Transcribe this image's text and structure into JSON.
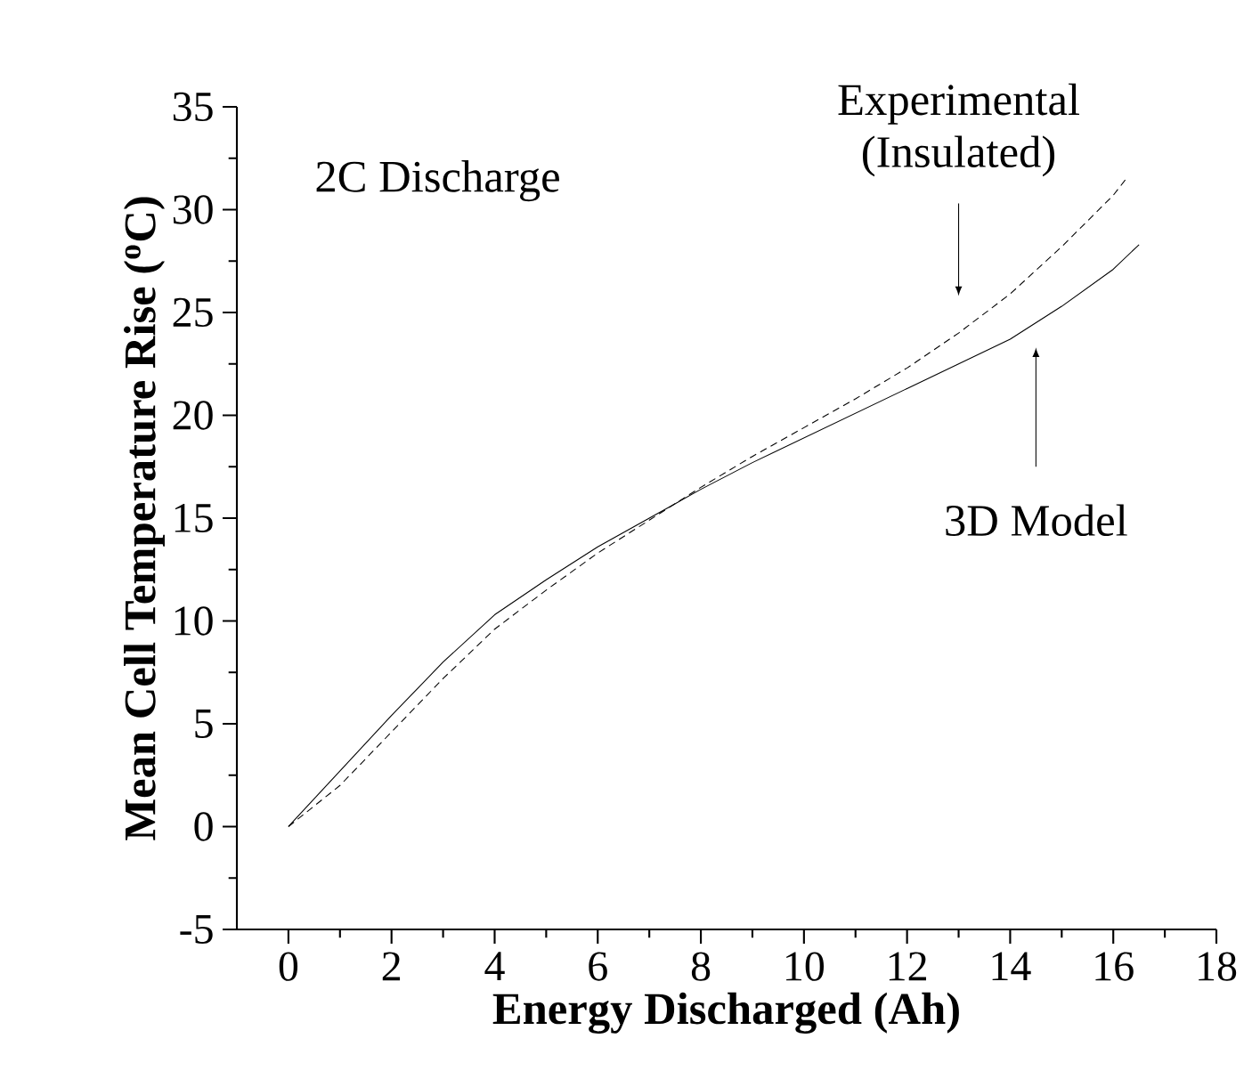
{
  "chart_data": {
    "type": "line",
    "xlabel": "Energy Discharged (Ah)",
    "ylabel": "Mean Cell Temperature Rise ($^{o}$C)",
    "annotations": [
      "2C Discharge"
    ],
    "xlim": [
      -1,
      18
    ],
    "ylim": [
      -5,
      35
    ],
    "xticks": [
      0,
      2,
      4,
      6,
      8,
      10,
      12,
      14,
      16,
      18
    ],
    "yticks": [
      -5,
      0,
      5,
      10,
      15,
      20,
      25,
      30,
      35
    ],
    "legend": false,
    "grid": false,
    "series": [
      {
        "name": "3D Model",
        "color": "#000000",
        "line_style": "solid",
        "x": [
          0,
          1,
          2,
          3,
          4,
          5,
          6,
          7,
          8,
          9,
          10,
          11,
          12,
          13,
          14,
          14.5,
          15,
          16,
          16.5
        ],
        "values": [
          0,
          2.7,
          5.4,
          8.0,
          10.3,
          12.0,
          13.6,
          15.0,
          16.4,
          17.7,
          18.9,
          20.1,
          21.3,
          22.5,
          23.7,
          24.5,
          25.3,
          27.1,
          28.3
        ]
      },
      {
        "name": "Experimental (Insulated)",
        "color": "#000000",
        "line_style": "dashed",
        "x": [
          0,
          1,
          2,
          3,
          4,
          5,
          6,
          7,
          8,
          9,
          10,
          11,
          12,
          13,
          14,
          15,
          16,
          16.25
        ],
        "values": [
          0,
          2.0,
          4.6,
          7.2,
          9.6,
          11.5,
          13.3,
          14.9,
          16.5,
          18.0,
          19.4,
          20.8,
          22.3,
          24.0,
          25.9,
          28.2,
          30.7,
          31.5
        ]
      }
    ]
  }
}
